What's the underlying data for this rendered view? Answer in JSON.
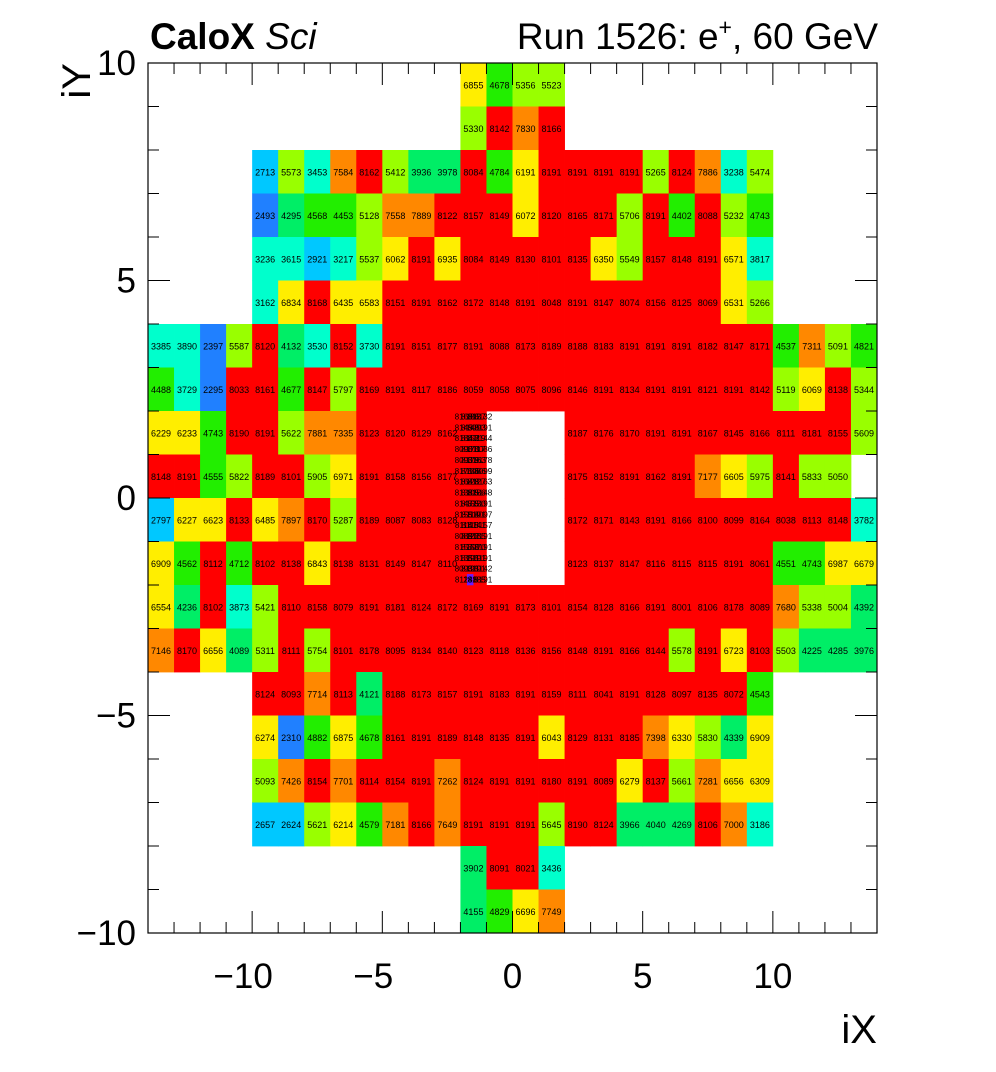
{
  "header": {
    "experiment_bold": "CaloX",
    "experiment_italic": "Sci",
    "run_prefix": "Run 1526: e",
    "run_charge": "+",
    "run_suffix": ", 60 GeV"
  },
  "chart_data": {
    "type": "heatmap",
    "title": "",
    "xlabel": "iX",
    "ylabel": "iY",
    "xlim": [
      -14,
      14
    ],
    "ylim": [
      -10,
      10
    ],
    "x_ticks": [
      -10,
      -5,
      0,
      5,
      10
    ],
    "y_ticks": [
      -10,
      -5,
      0,
      5,
      10
    ],
    "x_tick_labels": [
      "−10",
      "−5",
      "0",
      "5",
      "10"
    ],
    "y_tick_labels": [
      "−10",
      "−5",
      "0",
      "5",
      "10"
    ],
    "colormap": [
      "#6a1aff",
      "#2080ff",
      "#00c8ff",
      "#00ffcc",
      "#00ee66",
      "#22ee00",
      "#99ff00",
      "#ffee00",
      "#ff8800",
      "#ff0000"
    ],
    "grid": false,
    "rows": [
      {
        "iy": 9,
        "x_start": -2,
        "values": [
          6855,
          4678,
          5356,
          5523
        ]
      },
      {
        "iy": 8,
        "x_start": -2,
        "values": [
          5330,
          8142,
          7830,
          8166
        ]
      },
      {
        "iy": 7,
        "x_start": -10,
        "values": [
          2713,
          5573,
          3453,
          7584,
          8162,
          5412,
          3936,
          3978,
          8084,
          4784,
          6191,
          8191,
          8191,
          8191,
          8191,
          5265,
          8124,
          7886,
          3238,
          5474
        ]
      },
      {
        "iy": 6,
        "x_start": -10,
        "values": [
          2493,
          4295,
          4568,
          4453,
          5128,
          7558,
          7889,
          8122,
          8157,
          8149,
          6072,
          8120,
          8165,
          8171,
          5706,
          8191,
          4402,
          8088,
          5232,
          4743
        ]
      },
      {
        "iy": 5,
        "x_start": -10,
        "values": [
          3236,
          3615,
          2921,
          3217,
          5537,
          6062,
          8191,
          6935,
          8084,
          8149,
          8130,
          8101,
          8135,
          6350,
          5549,
          8157,
          8148,
          8191,
          6571,
          3817
        ]
      },
      {
        "iy": 4,
        "x_start": -10,
        "values": [
          3162,
          6834,
          8168,
          6435,
          6583,
          8151,
          8191,
          8162,
          8172,
          8148,
          8191,
          8048,
          8191,
          8147,
          8074,
          8156,
          8125,
          8069,
          6531,
          5266
        ]
      },
      {
        "iy": 3,
        "x_start": -14,
        "values": [
          3385,
          3890,
          2397,
          5587,
          8120,
          4132,
          3530,
          8152,
          3730,
          8191,
          8151,
          8177,
          8191,
          8088,
          8173,
          8189,
          8188,
          8183,
          8191,
          8191,
          8191,
          8182,
          8147,
          8171,
          4537,
          7311,
          5091,
          4821
        ]
      },
      {
        "iy": 2,
        "x_start": -14,
        "values": [
          4488,
          3729,
          2295,
          8033,
          8161,
          4677,
          8147,
          5797,
          8169,
          8191,
          8117,
          8186,
          8059,
          8058,
          8075,
          8096,
          8146,
          8191,
          8134,
          8191,
          8191,
          8121,
          8191,
          8142,
          5119,
          6069,
          8138,
          5344
        ]
      },
      {
        "iy": 1,
        "x_start": -14,
        "values": [
          6229,
          6233,
          4743,
          8190,
          8191,
          5622,
          7881,
          7335,
          8123,
          8120,
          8129,
          8162,
          null,
          null,
          null,
          null,
          8187,
          8176,
          8170,
          8191,
          8191,
          8167,
          8145,
          8166,
          8111,
          8181,
          8155,
          5609
        ]
      },
      {
        "iy": 0,
        "x_start": -14,
        "values": [
          8148,
          8191,
          4555,
          5822,
          8189,
          8101,
          5905,
          6971,
          8191,
          8158,
          8156,
          8177,
          null,
          null,
          null,
          null,
          8175,
          8152,
          8191,
          8162,
          8191,
          7177,
          6605,
          5975,
          8141,
          5833,
          5050,
          null
        ]
      },
      {
        "iy": -1,
        "x_start": -14,
        "values": [
          2797,
          6227,
          6623,
          8133,
          6485,
          7897,
          8170,
          5287,
          8189,
          8087,
          8083,
          8128,
          null,
          null,
          null,
          null,
          8172,
          8171,
          8143,
          8191,
          8166,
          8100,
          8099,
          8164,
          8038,
          8113,
          8148,
          3782
        ]
      },
      {
        "iy": -2,
        "x_start": -14,
        "values": [
          6909,
          4562,
          8112,
          4712,
          8102,
          8138,
          6843,
          8138,
          8131,
          8149,
          8147,
          8110,
          null,
          null,
          null,
          null,
          8123,
          8137,
          8147,
          8116,
          8115,
          8115,
          8191,
          8061,
          4551,
          4743,
          6987,
          6679
        ]
      },
      {
        "iy": -3,
        "x_start": -14,
        "values": [
          6554,
          4236,
          8102,
          3873,
          5421,
          8110,
          8158,
          8079,
          8191,
          8181,
          8124,
          8172,
          8169,
          8191,
          8173,
          8101,
          8154,
          8128,
          8166,
          8191,
          8001,
          8106,
          8178,
          8089,
          7680,
          5338,
          5004,
          4392
        ]
      },
      {
        "iy": -4,
        "x_start": -14,
        "values": [
          7146,
          8170,
          6656,
          4089,
          5311,
          8111,
          5754,
          8101,
          8178,
          8095,
          8134,
          8140,
          8123,
          8118,
          8136,
          8156,
          8148,
          8191,
          8166,
          8144,
          5578,
          8191,
          6723,
          8103,
          5503,
          4225,
          4285,
          3976
        ]
      },
      {
        "iy": -5,
        "x_start": -10,
        "values": [
          8124,
          8093,
          7714,
          8113,
          4121,
          8188,
          8173,
          8157,
          8191,
          8183,
          8191,
          8159,
          8111,
          8041,
          8191,
          8128,
          8097,
          8135,
          8072,
          4543
        ]
      },
      {
        "iy": -6,
        "x_start": -10,
        "values": [
          6274,
          2310,
          4882,
          6875,
          4678,
          8161,
          8191,
          8189,
          8148,
          8135,
          8191,
          6043,
          8129,
          8131,
          8185,
          7398,
          6330,
          5830,
          4339,
          6909
        ]
      },
      {
        "iy": -7,
        "x_start": -10,
        "values": [
          5093,
          7426,
          8154,
          7701,
          8114,
          8154,
          8191,
          7262,
          8124,
          8191,
          8191,
          8180,
          8191,
          8089,
          6279,
          8137,
          5661,
          7281,
          6656,
          6309
        ]
      },
      {
        "iy": -8,
        "x_start": -10,
        "values": [
          2657,
          2624,
          5621,
          6214,
          4579,
          7181,
          8166,
          7649,
          8191,
          8191,
          8191,
          5645,
          8190,
          8124,
          3966,
          4040,
          4269,
          8106,
          7000,
          3186
        ]
      },
      {
        "iy": -9,
        "x_start": -2,
        "values": [
          3902,
          8091,
          8021,
          3436
        ]
      },
      {
        "iy": -10,
        "x_start": -2,
        "values": [
          4155,
          4829,
          6696,
          7749
        ]
      }
    ],
    "fine_region": {
      "x_range": [
        -2,
        2
      ],
      "y_range": [
        -3,
        2
      ],
      "subdivisions_per_cell": 4,
      "rows": [
        [
          8168,
          8186,
          8137,
          8132
        ],
        [
          8145,
          8140,
          8093,
          8191
        ],
        [
          8184,
          8152,
          8119,
          8144
        ],
        [
          8090,
          8170,
          8117,
          8086
        ],
        [
          8093,
          8179,
          8163,
          8178
        ],
        [
          8171,
          8136,
          8086,
          8099
        ],
        [
          8164,
          8128,
          8127,
          8163
        ],
        [
          8138,
          8105,
          8186,
          8148
        ],
        [
          8147,
          8155,
          8130,
          8191
        ],
        [
          8155,
          8114,
          8191,
          8097
        ],
        [
          8114,
          8115,
          8141,
          8157
        ],
        [
          8089,
          8122,
          8135,
          8191
        ],
        [
          8157,
          8150,
          8070,
          8191
        ],
        [
          8135,
          8191,
          8191,
          8191
        ],
        [
          8093,
          8191,
          8191,
          8142
        ],
        [
          8118,
          248,
          8185,
          8191
        ]
      ]
    }
  }
}
